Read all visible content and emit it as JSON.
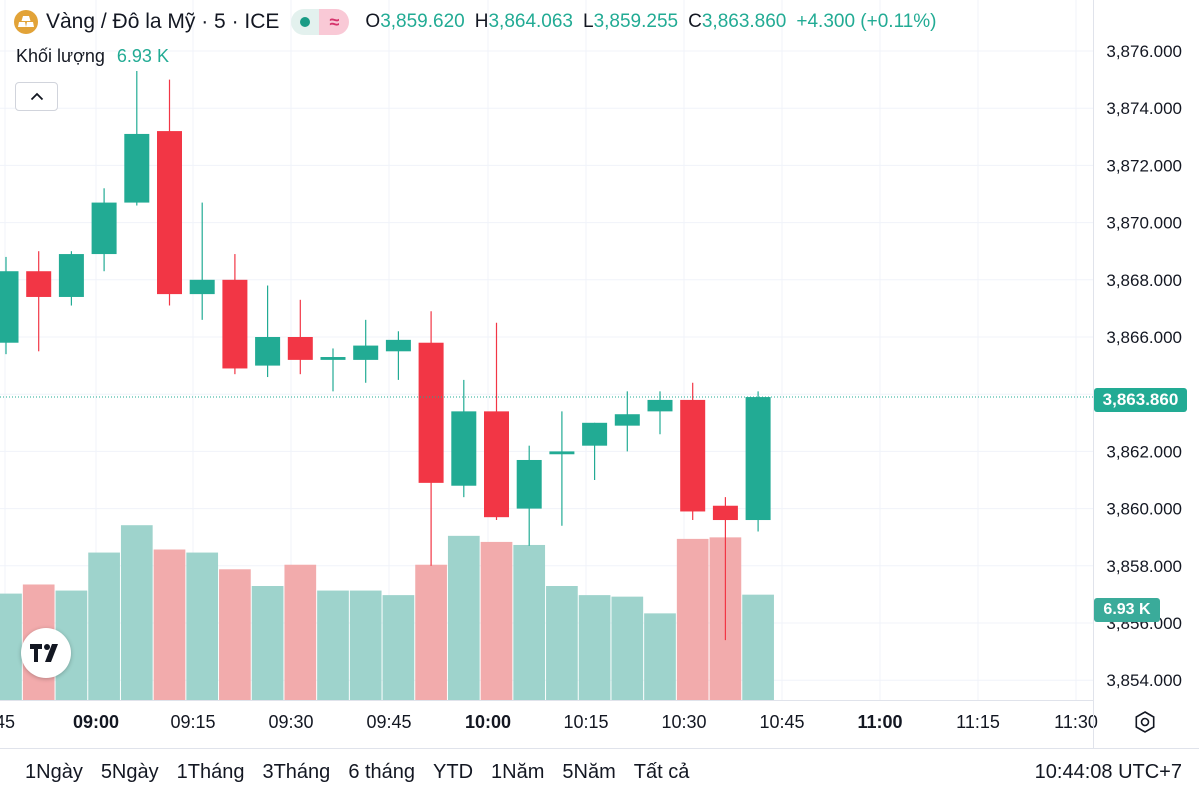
{
  "header": {
    "title": "Vàng / Đô la Mỹ · 5 · ICE",
    "logo_icon": "gold-bars-icon",
    "status_icon": "market-open-dot-icon",
    "wave_icon": "wave-icon",
    "ohlc": {
      "o_label": "O",
      "o_value": "3,859.620",
      "h_label": "H",
      "h_value": "3,864.063",
      "l_label": "L",
      "l_value": "3,859.255",
      "c_label": "C",
      "c_value": "3,863.860",
      "change": "+4.300 (+0.11%)"
    }
  },
  "volume_legend": {
    "label": "Khối lượng",
    "value": "6.93 K"
  },
  "price_tag": "3,863.860",
  "volume_tag": "6.93 K",
  "colors": {
    "up": "#22ab94",
    "down": "#f23645",
    "up_vol": "#9ed3cc",
    "down_vol": "#f2abac",
    "grid": "#f0f3fa"
  },
  "chart_data": {
    "type": "candlestick",
    "y_axis": {
      "ticks": [
        "3,876.000",
        "3,874.000",
        "3,872.000",
        "3,870.000",
        "3,868.000",
        "3,866.000",
        "3,864.000",
        "3,862.000",
        "3,860.000",
        "3,858.000",
        "3,856.000",
        "3,854.000"
      ],
      "tick_values": [
        3876,
        3874,
        3872,
        3870,
        3868,
        3866,
        3864,
        3862,
        3860,
        3858,
        3856,
        3854
      ],
      "ylim": [
        3853.5,
        3876.8
      ]
    },
    "x_axis": {
      "ticks": [
        "45",
        "09:00",
        "09:15",
        "09:30",
        "09:45",
        "10:00",
        "10:15",
        "10:30",
        "10:45",
        "11:00",
        "11:15",
        "11:30"
      ]
    },
    "candles": [
      {
        "t": "08:50",
        "o": 3865.8,
        "h": 3868.8,
        "l": 3865.4,
        "c": 3868.3
      },
      {
        "t": "08:55",
        "o": 3868.3,
        "h": 3869.0,
        "l": 3865.5,
        "c": 3867.4
      },
      {
        "t": "09:00",
        "o": 3867.4,
        "h": 3869.0,
        "l": 3867.1,
        "c": 3868.9
      },
      {
        "t": "09:05",
        "o": 3868.9,
        "h": 3871.2,
        "l": 3868.3,
        "c": 3870.7
      },
      {
        "t": "09:10",
        "o": 3870.7,
        "h": 3875.3,
        "l": 3870.6,
        "c": 3873.1
      },
      {
        "t": "09:15",
        "o": 3873.2,
        "h": 3875.0,
        "l": 3867.1,
        "c": 3867.5
      },
      {
        "t": "09:20",
        "o": 3867.5,
        "h": 3870.7,
        "l": 3866.6,
        "c": 3868.0
      },
      {
        "t": "09:25",
        "o": 3868.0,
        "h": 3868.9,
        "l": 3864.7,
        "c": 3864.9
      },
      {
        "t": "09:30",
        "o": 3865.0,
        "h": 3867.8,
        "l": 3864.6,
        "c": 3866.0
      },
      {
        "t": "09:35",
        "o": 3866.0,
        "h": 3867.3,
        "l": 3864.7,
        "c": 3865.2
      },
      {
        "t": "09:40",
        "o": 3865.2,
        "h": 3865.6,
        "l": 3864.1,
        "c": 3865.3
      },
      {
        "t": "09:45",
        "o": 3865.2,
        "h": 3866.6,
        "l": 3864.4,
        "c": 3865.7
      },
      {
        "t": "09:50",
        "o": 3865.5,
        "h": 3866.2,
        "l": 3864.5,
        "c": 3865.9
      },
      {
        "t": "09:55",
        "o": 3865.8,
        "h": 3866.9,
        "l": 3858.0,
        "c": 3860.9
      },
      {
        "t": "10:00",
        "o": 3860.8,
        "h": 3864.5,
        "l": 3860.4,
        "c": 3863.4
      },
      {
        "t": "10:05",
        "o": 3863.4,
        "h": 3866.5,
        "l": 3859.6,
        "c": 3859.7
      },
      {
        "t": "10:10",
        "o": 3860.0,
        "h": 3862.2,
        "l": 3858.7,
        "c": 3861.7
      },
      {
        "t": "10:15",
        "o": 3861.9,
        "h": 3863.4,
        "l": 3859.4,
        "c": 3862.0
      },
      {
        "t": "10:20",
        "o": 3862.2,
        "h": 3863.0,
        "l": 3861.0,
        "c": 3863.0
      },
      {
        "t": "10:25",
        "o": 3862.9,
        "h": 3864.1,
        "l": 3862.0,
        "c": 3863.3
      },
      {
        "t": "10:30",
        "o": 3863.4,
        "h": 3864.1,
        "l": 3862.6,
        "c": 3863.8
      },
      {
        "t": "10:35",
        "o": 3863.8,
        "h": 3864.4,
        "l": 3859.6,
        "c": 3859.9
      },
      {
        "t": "10:40",
        "o": 3860.1,
        "h": 3860.4,
        "l": 3855.4,
        "c": 3859.6
      },
      {
        "t": "10:45",
        "o": 3859.6,
        "h": 3864.1,
        "l": 3859.2,
        "c": 3863.9
      }
    ],
    "volume": {
      "unit": "K",
      "values": [
        7.0,
        7.6,
        7.2,
        9.7,
        11.5,
        9.9,
        9.7,
        8.6,
        7.5,
        8.9,
        7.2,
        7.2,
        6.9,
        8.9,
        10.8,
        10.4,
        10.2,
        7.5,
        6.9,
        6.8,
        5.7,
        10.6,
        10.7,
        6.93
      ]
    }
  },
  "ranges": [
    "1Ngày",
    "5Ngày",
    "1Tháng",
    "3Tháng",
    "6 tháng",
    "YTD",
    "1Năm",
    "5Năm",
    "Tất cả"
  ],
  "clock": "10:44:08 UTC+7",
  "settings_icon": "settings-icon",
  "tv_logo_icon": "tradingview-logo-icon"
}
